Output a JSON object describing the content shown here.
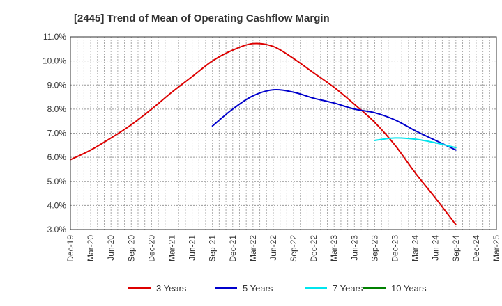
{
  "chart_data": {
    "type": "line",
    "title": "[2445]  Trend of Mean of Operating Cashflow Margin",
    "xlabel": "",
    "ylabel": "",
    "ylim": [
      3.0,
      11.0
    ],
    "y_ticks": [
      3.0,
      4.0,
      5.0,
      6.0,
      7.0,
      8.0,
      9.0,
      10.0,
      11.0
    ],
    "y_tick_labels": [
      "3.0%",
      "4.0%",
      "5.0%",
      "6.0%",
      "7.0%",
      "8.0%",
      "9.0%",
      "10.0%",
      "11.0%"
    ],
    "categories": [
      "Dec-19",
      "Mar-20",
      "Jun-20",
      "Sep-20",
      "Dec-20",
      "Mar-21",
      "Jun-21",
      "Sep-21",
      "Dec-21",
      "Mar-22",
      "Jun-22",
      "Sep-22",
      "Dec-22",
      "Mar-23",
      "Jun-23",
      "Sep-23",
      "Dec-23",
      "Mar-24",
      "Jun-24",
      "Sep-24",
      "Dec-24",
      "Mar-25"
    ],
    "grid": true,
    "legend_position": "bottom",
    "series": [
      {
        "name": "3 Years",
        "color": "#dd0000",
        "values": [
          5.9,
          6.3,
          6.8,
          7.35,
          8.0,
          8.7,
          9.35,
          10.0,
          10.45,
          10.72,
          10.6,
          10.1,
          9.5,
          8.9,
          8.2,
          7.45,
          6.5,
          5.35,
          4.3,
          3.2,
          null,
          null
        ]
      },
      {
        "name": "5 Years",
        "color": "#0000cc",
        "values": [
          null,
          null,
          null,
          null,
          null,
          null,
          null,
          7.3,
          8.0,
          8.55,
          8.8,
          8.7,
          8.45,
          8.25,
          8.0,
          7.85,
          7.55,
          7.1,
          6.7,
          6.3,
          null,
          null
        ]
      },
      {
        "name": "7 Years",
        "color": "#00e5ee",
        "values": [
          null,
          null,
          null,
          null,
          null,
          null,
          null,
          null,
          null,
          null,
          null,
          null,
          null,
          null,
          null,
          6.7,
          6.8,
          6.75,
          6.6,
          6.4,
          null,
          null
        ]
      },
      {
        "name": "10 Years",
        "color": "#008000",
        "values": [
          null,
          null,
          null,
          null,
          null,
          null,
          null,
          null,
          null,
          null,
          null,
          null,
          null,
          null,
          null,
          null,
          null,
          null,
          null,
          null,
          null,
          null
        ]
      }
    ]
  }
}
